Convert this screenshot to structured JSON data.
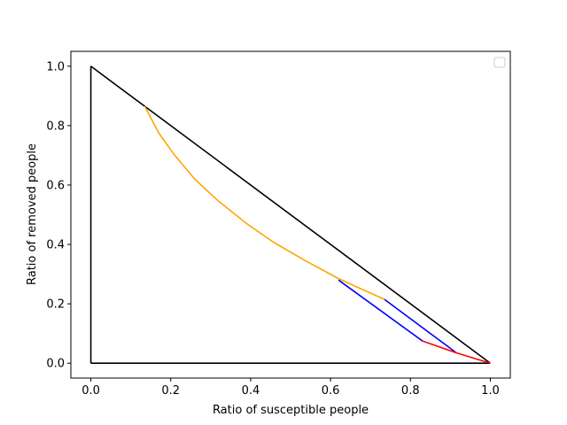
{
  "chart_data": {
    "type": "line",
    "title": "",
    "xlabel": "Ratio of susceptible people",
    "ylabel": "Ratio of removed people",
    "xlim": [
      -0.05,
      1.05
    ],
    "ylim": [
      -0.05,
      1.05
    ],
    "xticks": [
      0.0,
      0.2,
      0.4,
      0.6,
      0.8,
      1.0
    ],
    "yticks": [
      0.0,
      0.2,
      0.4,
      0.6,
      0.8,
      1.0
    ],
    "xtick_labels": [
      "0.0",
      "0.2",
      "0.4",
      "0.6",
      "0.8",
      "1.0"
    ],
    "ytick_labels": [
      "0.0",
      "0.2",
      "0.4",
      "0.6",
      "0.8",
      "1.0"
    ],
    "grid": false,
    "legend": {
      "placement": "top-right",
      "entries": []
    },
    "series": [
      {
        "color": "#000000",
        "points": [
          [
            0.0,
            0.0
          ],
          [
            1.0,
            0.0
          ]
        ]
      },
      {
        "color": "#000000",
        "points": [
          [
            0.0,
            0.0
          ],
          [
            0.0,
            1.0
          ]
        ]
      },
      {
        "color": "#000000",
        "points": [
          [
            0.0,
            1.0
          ],
          [
            1.0,
            0.0
          ]
        ]
      },
      {
        "color": "#ffa500",
        "points": [
          [
            0.135,
            0.865
          ],
          [
            0.17,
            0.775
          ],
          [
            0.21,
            0.7
          ],
          [
            0.26,
            0.62
          ],
          [
            0.32,
            0.545
          ],
          [
            0.39,
            0.47
          ],
          [
            0.46,
            0.405
          ],
          [
            0.54,
            0.343
          ],
          [
            0.62,
            0.285
          ],
          [
            0.68,
            0.248
          ],
          [
            0.735,
            0.215
          ]
        ]
      },
      {
        "color": "#0000ff",
        "points": [
          [
            0.62,
            0.28
          ],
          [
            0.83,
            0.075
          ]
        ]
      },
      {
        "color": "#0000ff",
        "points": [
          [
            0.735,
            0.215
          ],
          [
            0.915,
            0.035
          ]
        ]
      },
      {
        "color": "#ff0000",
        "points": [
          [
            0.83,
            0.075
          ],
          [
            0.915,
            0.035
          ],
          [
            1.0,
            0.0
          ]
        ]
      }
    ]
  }
}
